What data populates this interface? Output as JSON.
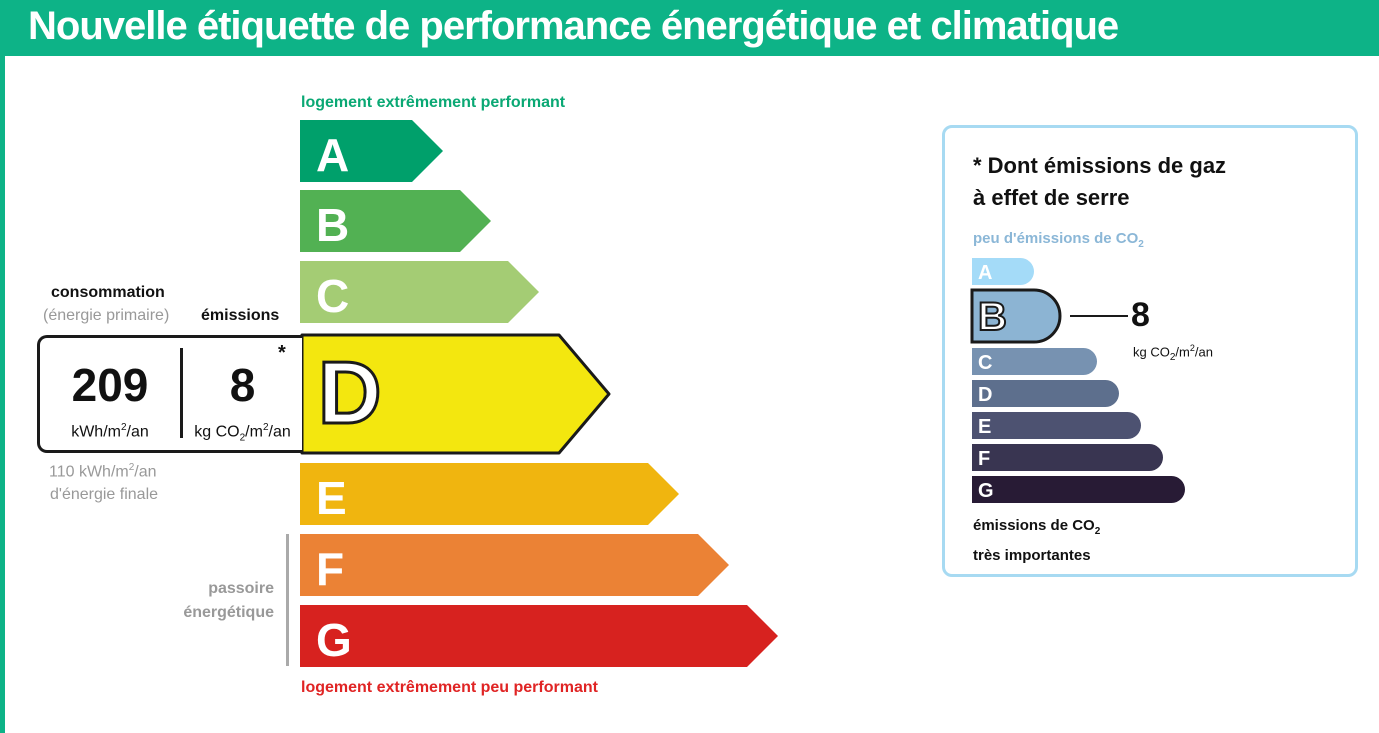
{
  "header": {
    "title": "Nouvelle étiquette de performance énergétique et climatique"
  },
  "dpe": {
    "top_label": "logement extrêmement performant",
    "bottom_label": "logement extrêmement peu performant",
    "classes": [
      {
        "letter": "A",
        "color": "#00a06b"
      },
      {
        "letter": "B",
        "color": "#52b153"
      },
      {
        "letter": "C",
        "color": "#a4cc74"
      },
      {
        "letter": "D",
        "color": "#f3e70f"
      },
      {
        "letter": "E",
        "color": "#f0b50f"
      },
      {
        "letter": "F",
        "color": "#eb8235"
      },
      {
        "letter": "G",
        "color": "#d7221f"
      }
    ],
    "current_class": "D",
    "consumption_label": "consommation",
    "consumption_sublabel": "(énergie primaire)",
    "emissions_label": "émissions",
    "consumption_value": "209",
    "consumption_unit_base": "kWh/m",
    "consumption_unit_exp": "2",
    "consumption_unit_tail": "/an",
    "emissions_value": "8",
    "emissions_unit_base": "kg CO",
    "emissions_unit_sub": "2",
    "emissions_unit_mid": "/m",
    "emissions_unit_exp": "2",
    "emissions_unit_tail": "/an",
    "asterisk": "*",
    "final_energy_value": "110 kWh/m",
    "final_energy_exp": "2",
    "final_energy_tail": "/an",
    "final_energy_label": "d'énergie finale",
    "passoire_line1": "passoire",
    "passoire_line2": "énergétique"
  },
  "ges": {
    "title_line1": "* Dont émissions de gaz",
    "title_line2": "à effet de serre",
    "top_label": "peu d'émissions de CO",
    "top_label_sub": "2",
    "bottom_label_line1": "émissions de CO",
    "bottom_label_sub": "2",
    "bottom_label_line2": "très importantes",
    "classes": [
      {
        "letter": "A",
        "color": "#a4dbf8"
      },
      {
        "letter": "B",
        "color": "#8cb4d3"
      },
      {
        "letter": "C",
        "color": "#7792b1"
      },
      {
        "letter": "D",
        "color": "#5d6f8d"
      },
      {
        "letter": "E",
        "color": "#4d5271"
      },
      {
        "letter": "F",
        "color": "#393551"
      },
      {
        "letter": "G",
        "color": "#281b35"
      }
    ],
    "current_class": "B",
    "value": "8",
    "unit_base": "kg CO",
    "unit_sub": "2",
    "unit_mid": "/m",
    "unit_exp": "2",
    "unit_tail": "/an"
  }
}
